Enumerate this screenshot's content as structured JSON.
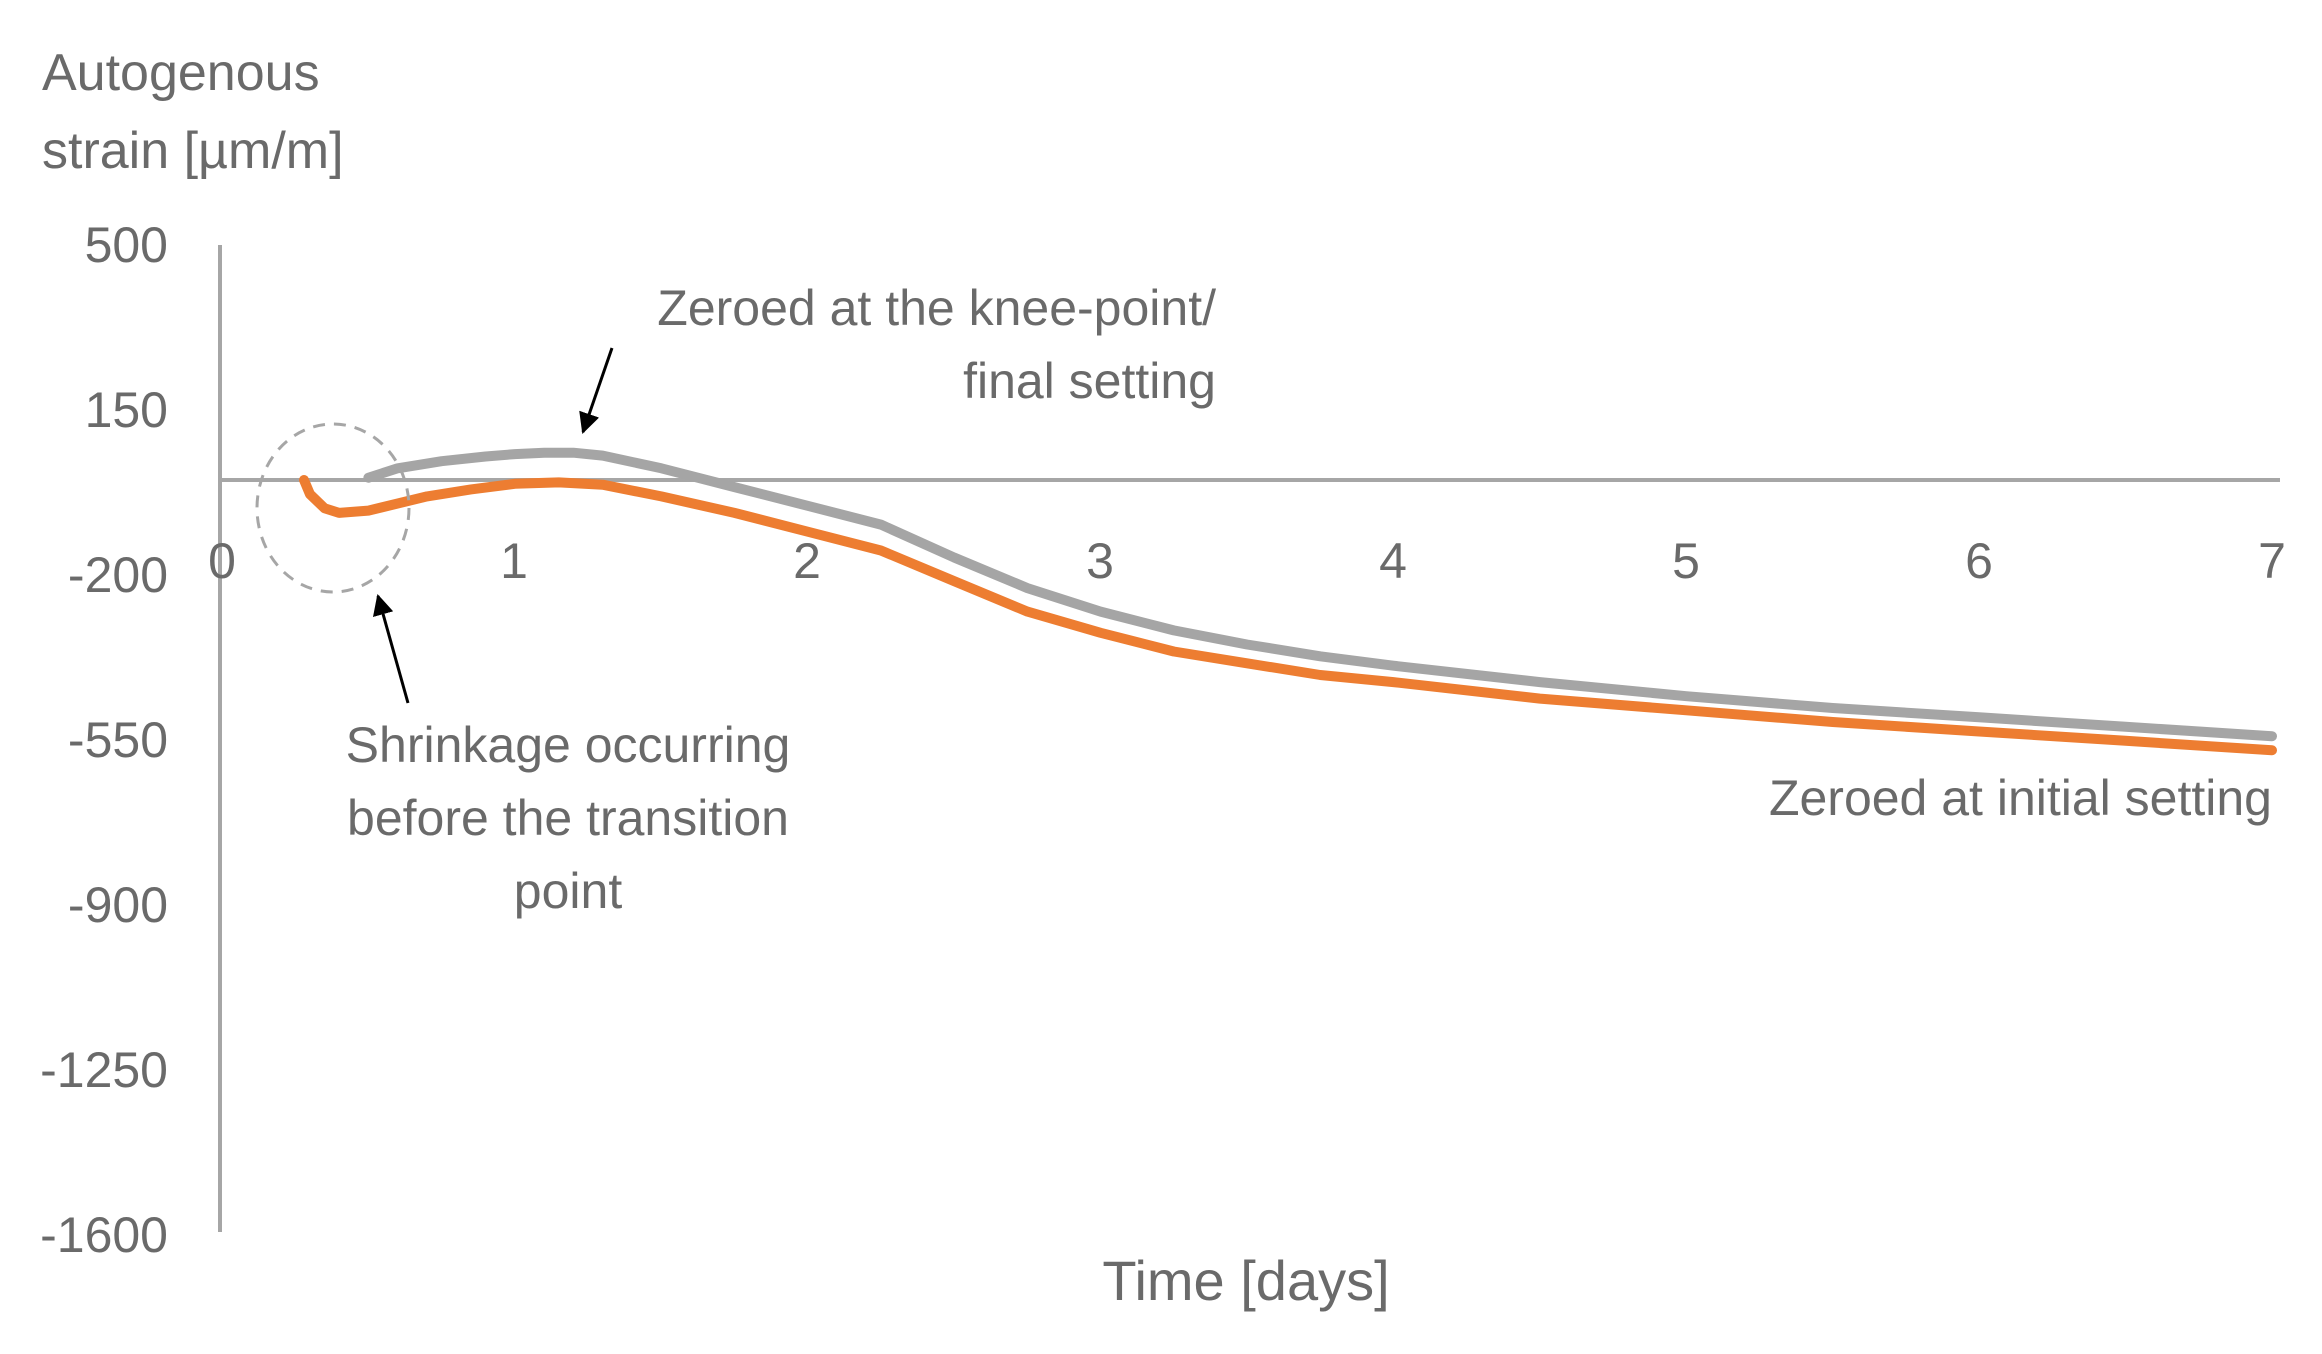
{
  "chart_data": {
    "type": "line",
    "ylabel_lines": [
      "Autogenous",
      "strain [µm/m]"
    ],
    "xlabel": "Time [days]",
    "xlim": [
      0,
      7
    ],
    "ylim": [
      -1600,
      500
    ],
    "x_ticks": [
      "0",
      "1",
      "2",
      "3",
      "4",
      "5",
      "6",
      "7"
    ],
    "y_ticks": [
      "500",
      "150",
      "-200",
      "-550",
      "-900",
      "-1250",
      "-1600"
    ],
    "grid": false,
    "legend": "none",
    "series": [
      {
        "color": "#a5a5a5",
        "x": [
          0.5,
          0.6,
          0.75,
          0.9,
          1.0,
          1.1,
          1.2,
          1.3,
          1.5,
          1.75,
          2.0,
          2.25,
          2.5,
          2.75,
          3.0,
          3.25,
          3.5,
          3.75,
          4.0,
          4.5,
          5.0,
          5.5,
          6.0,
          6.5,
          7.0
        ],
        "y": [
          5,
          25,
          40,
          50,
          55,
          58,
          58,
          52,
          25,
          -15,
          -55,
          -95,
          -165,
          -230,
          -280,
          -320,
          -350,
          -375,
          -395,
          -430,
          -460,
          -485,
          -505,
          -525,
          -545
        ]
      },
      {
        "color": "#ed7d31",
        "x": [
          0.28,
          0.3,
          0.35,
          0.4,
          0.5,
          0.6,
          0.7,
          0.85,
          1.0,
          1.15,
          1.3,
          1.5,
          1.75,
          2.0,
          2.25,
          2.5,
          2.75,
          3.0,
          3.25,
          3.5,
          3.75,
          4.0,
          4.5,
          5.0,
          5.5,
          6.0,
          6.5,
          7.0
        ],
        "y": [
          0,
          -30,
          -60,
          -70,
          -65,
          -50,
          -35,
          -20,
          -8,
          -5,
          -10,
          -35,
          -70,
          -110,
          -150,
          -215,
          -280,
          -325,
          -365,
          -390,
          -415,
          -430,
          -465,
          -490,
          -515,
          -535,
          -555,
          -575
        ]
      }
    ],
    "annotations": {
      "gray_label": [
        "Zeroed at the knee-point/",
        "final setting"
      ],
      "orange_label": "Zeroed at initial setting",
      "circle_label": [
        "Shrinkage occurring",
        "before the transition",
        "point"
      ]
    }
  }
}
